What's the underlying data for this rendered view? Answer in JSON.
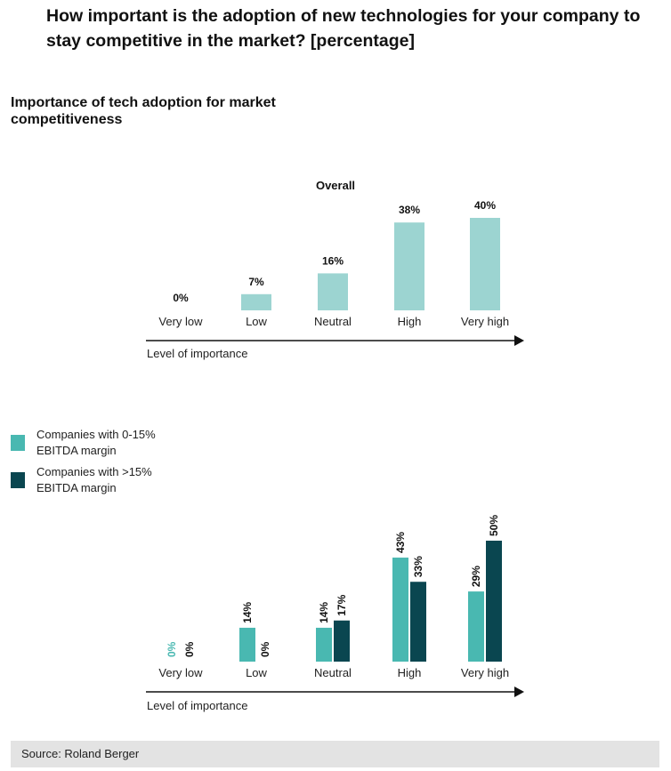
{
  "title": "How important is the adoption of new technologies for your company to stay competitive in the market? [percentage]",
  "subtitle": "Importance of tech adoption for market competitiveness",
  "colors": {
    "overall": "#9cd4d1",
    "low_margin": "#49b8b1",
    "high_margin": "#0a4650",
    "axis": "#111111"
  },
  "legend": [
    {
      "label": "Companies with 0-15% EBITDA margin",
      "color": "#49b8b1"
    },
    {
      "label": "Companies with >15% EBITDA margin",
      "color": "#0a4650"
    }
  ],
  "source": "Source: Roland Berger",
  "chart_data": [
    {
      "type": "bar",
      "title": "Overall",
      "xlabel": "Level of importance",
      "categories": [
        "Very low",
        "Low",
        "Neutral",
        "High",
        "Very high"
      ],
      "values": [
        0,
        7,
        16,
        38,
        40
      ],
      "value_labels": [
        "0%",
        "7%",
        "16%",
        "38%",
        "40%"
      ],
      "ylim": [
        0,
        40
      ]
    },
    {
      "type": "bar",
      "xlabel": "Level of importance",
      "categories": [
        "Very low",
        "Low",
        "Neutral",
        "High",
        "Very high"
      ],
      "ylim": [
        0,
        50
      ],
      "series": [
        {
          "name": "Companies with 0-15% EBITDA margin",
          "values": [
            0,
            14,
            14,
            43,
            29
          ],
          "value_labels": [
            "0%",
            "14%",
            "14%",
            "43%",
            "29%"
          ]
        },
        {
          "name": "Companies with >15% EBITDA margin",
          "values": [
            0,
            0,
            17,
            33,
            50
          ],
          "value_labels": [
            "0%",
            "0%",
            "17%",
            "33%",
            "50%"
          ]
        }
      ]
    }
  ]
}
